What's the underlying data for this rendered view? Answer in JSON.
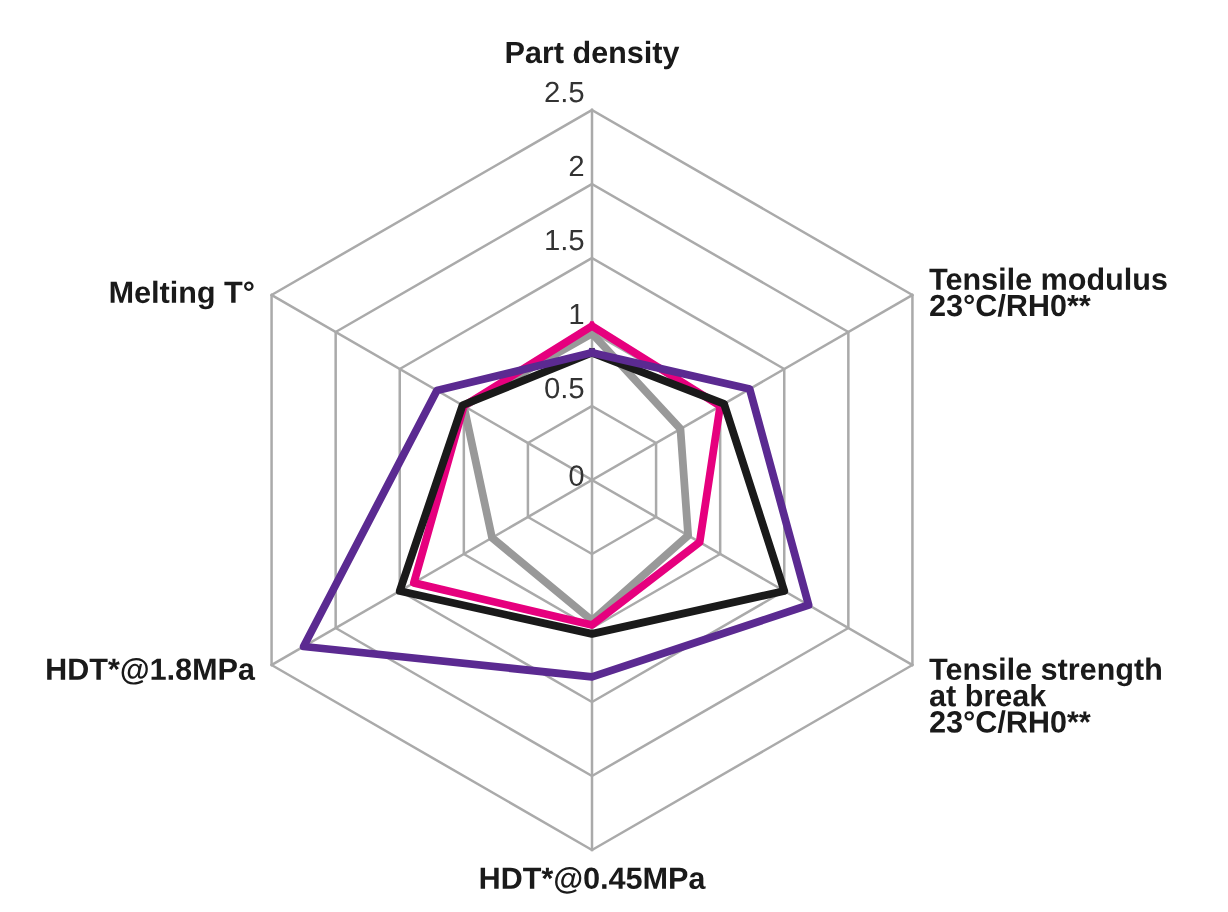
{
  "chart_data": {
    "type": "radar",
    "categories": [
      "Part density",
      "Tensile modulus\n23°C/RH0**",
      "Tensile strength\nat break\n23°C/RH0**",
      "HDT*@0.45MPa",
      "HDT*@1.8MPa",
      "Melting T°"
    ],
    "series": [
      {
        "color": "#999999",
        "values": [
          0.99,
          0.69,
          0.75,
          0.95,
          0.78,
          1.0
        ]
      },
      {
        "color": "#e6007e",
        "values": [
          1.04,
          1.0,
          0.84,
          0.98,
          1.39,
          1.0
        ]
      },
      {
        "color": "#1a1a1a",
        "values": [
          0.86,
          1.03,
          1.5,
          1.04,
          1.5,
          1.01
        ]
      },
      {
        "color": "#5b2a91",
        "values": [
          0.86,
          1.23,
          1.69,
          1.33,
          2.25,
          1.21
        ]
      }
    ],
    "ylim": [
      0,
      2.5
    ],
    "yticks": [
      0,
      0.5,
      1,
      1.5,
      2,
      2.5
    ],
    "grid": true,
    "legend": false
  }
}
